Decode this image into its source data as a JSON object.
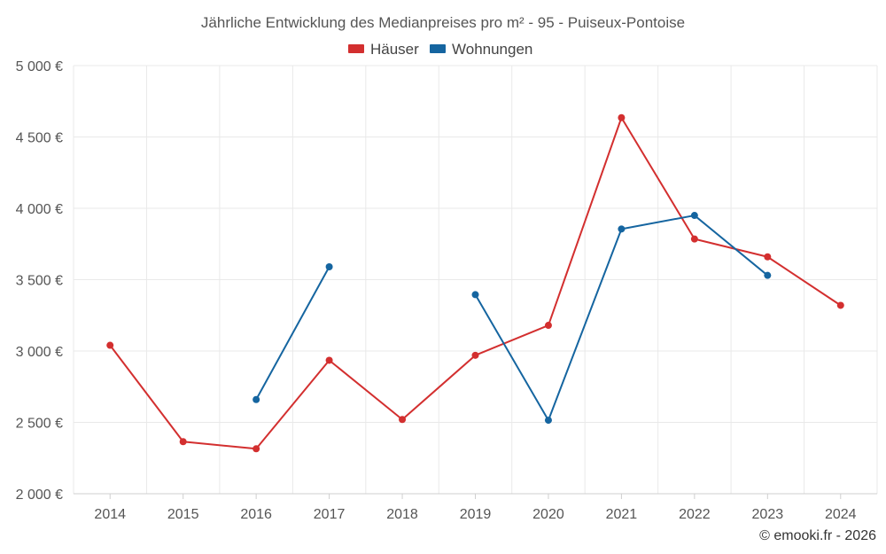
{
  "chart_data": {
    "type": "line",
    "title": "Jährliche Entwicklung des Medianpreises pro m² - 95 - Puiseux-Pontoise",
    "categories": [
      "2014",
      "2015",
      "2016",
      "2017",
      "2018",
      "2019",
      "2020",
      "2021",
      "2022",
      "2023",
      "2024"
    ],
    "ylim": [
      2000,
      5000
    ],
    "yticks": [
      2000,
      2500,
      3000,
      3500,
      4000,
      4500,
      5000
    ],
    "ytick_labels": [
      "2 000 €",
      "2 500 €",
      "3 000 €",
      "3 500 €",
      "4 000 €",
      "4 500 €",
      "5 000 €"
    ],
    "grid": true,
    "legend_position": "top-center",
    "series": [
      {
        "name": "Häuser",
        "color": "#d32f2f",
        "values": [
          3040,
          2365,
          2315,
          2935,
          2520,
          2970,
          3180,
          4635,
          3785,
          3660,
          3320
        ]
      },
      {
        "name": "Wohnungen",
        "color": "#1565a0",
        "values": [
          null,
          null,
          2660,
          3590,
          null,
          3395,
          2515,
          3855,
          3950,
          3530,
          null
        ]
      }
    ],
    "credit": "© emooki.fr - 2026"
  }
}
